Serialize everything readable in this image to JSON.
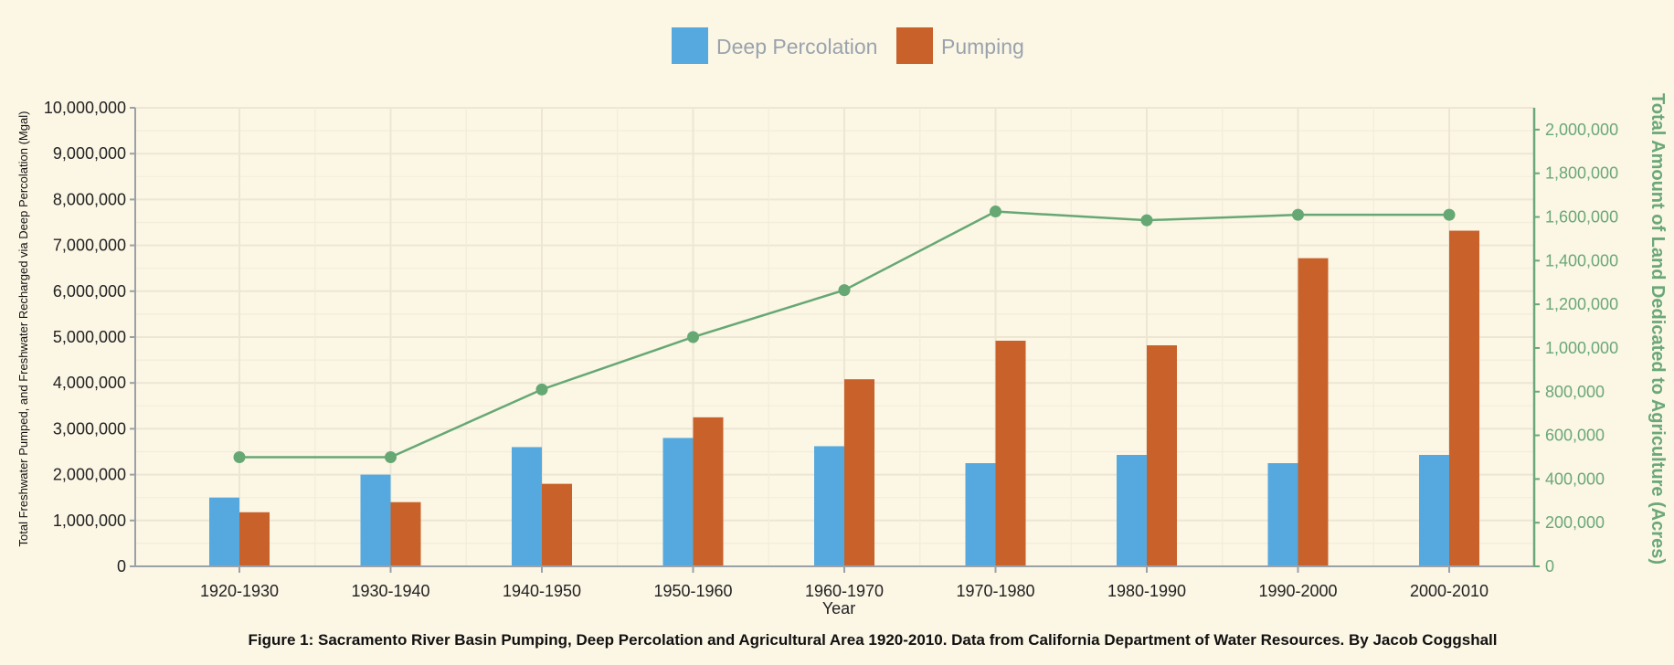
{
  "chart_data": {
    "type": "bar",
    "categories": [
      "1920-1930",
      "1930-1940",
      "1940-1950",
      "1950-1960",
      "1960-1970",
      "1970-1980",
      "1980-1990",
      "1990-2000",
      "2000-2010"
    ],
    "series": [
      {
        "name": "Deep Percolation",
        "type": "bar",
        "axis": "left",
        "color": "#55a9de",
        "values": [
          1500000,
          2000000,
          2600000,
          2800000,
          2620000,
          2250000,
          2430000,
          2250000,
          2430000
        ]
      },
      {
        "name": "Pumping",
        "type": "bar",
        "axis": "left",
        "color": "#c8612a",
        "values": [
          1180000,
          1400000,
          1800000,
          3250000,
          4080000,
          4920000,
          4820000,
          6720000,
          7320000
        ]
      },
      {
        "name": "",
        "type": "line",
        "axis": "right",
        "color": "#66a873",
        "values": [
          500000,
          500000,
          810000,
          1050000,
          1265000,
          1625000,
          1585000,
          1610000,
          1610000
        ]
      }
    ],
    "y_left": {
      "label": "Total Freshwater Pumped, and Freshwater Recharged via Deep Percolation (Mgal)",
      "ylim": [
        0,
        10000000
      ],
      "ticks": [
        "0",
        "1,000,000",
        "2,000,000",
        "3,000,000",
        "4,000,000",
        "5,000,000",
        "6,000,000",
        "7,000,000",
        "8,000,000",
        "9,000,000",
        "10,000,000"
      ]
    },
    "y_right": {
      "label": "Total Amount of Land Dedicated to Agriculture (Acres)",
      "ylim": [
        0,
        2100000
      ],
      "ticks": [
        "0",
        "200,000",
        "400,000",
        "600,000",
        "800,000",
        "1,000,000",
        "1,200,000",
        "1,400,000",
        "1,600,000",
        "1,800,000",
        "2,000,000"
      ]
    },
    "xlabel": "Year",
    "legend": {
      "placement": "top-center",
      "entries": [
        "Deep Percolation",
        "Pumping"
      ]
    },
    "grid": true,
    "caption": "Figure 1: Sacramento River Basin Pumping, Deep Percolation and Agricultural Area 1920-2010. Data from California Department of Water Resources. By Jacob Coggshall"
  }
}
